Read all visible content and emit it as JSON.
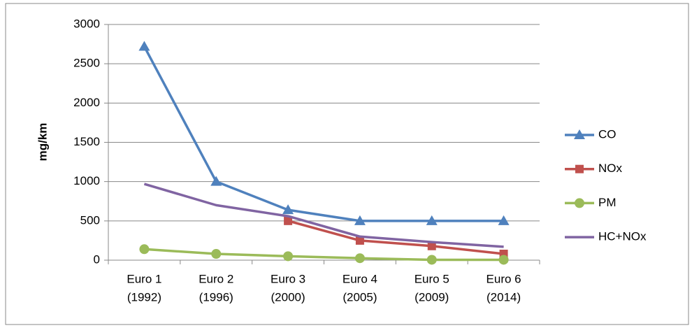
{
  "chart_data": {
    "type": "line",
    "y_label": "mg/km",
    "categories": [
      [
        "Euro 1",
        "(1992)"
      ],
      [
        "Euro 2",
        "(1996)"
      ],
      [
        "Euro 3",
        "(2000)"
      ],
      [
        "Euro 4",
        "(2005)"
      ],
      [
        "Euro 5",
        "(2009)"
      ],
      [
        "Euro 6",
        "(2014)"
      ]
    ],
    "series": [
      {
        "name": "CO",
        "color": "#4f81bd",
        "marker": "triangle",
        "values": [
          2720,
          1000,
          640,
          500,
          500,
          500
        ]
      },
      {
        "name": "NOx",
        "color": "#c0504d",
        "marker": "square",
        "values": [
          null,
          null,
          500,
          250,
          180,
          80
        ]
      },
      {
        "name": "PM",
        "color": "#9bbb59",
        "marker": "circle",
        "values": [
          140,
          80,
          50,
          25,
          5,
          5
        ]
      },
      {
        "name": "HC+NOx",
        "color": "#8064a2",
        "values": [
          970,
          700,
          560,
          300,
          230,
          170
        ]
      }
    ],
    "ylim": [
      0,
      3000
    ],
    "yticks": [
      0,
      500,
      1000,
      1500,
      2000,
      2500,
      3000
    ],
    "grid": true,
    "legend": "right"
  }
}
